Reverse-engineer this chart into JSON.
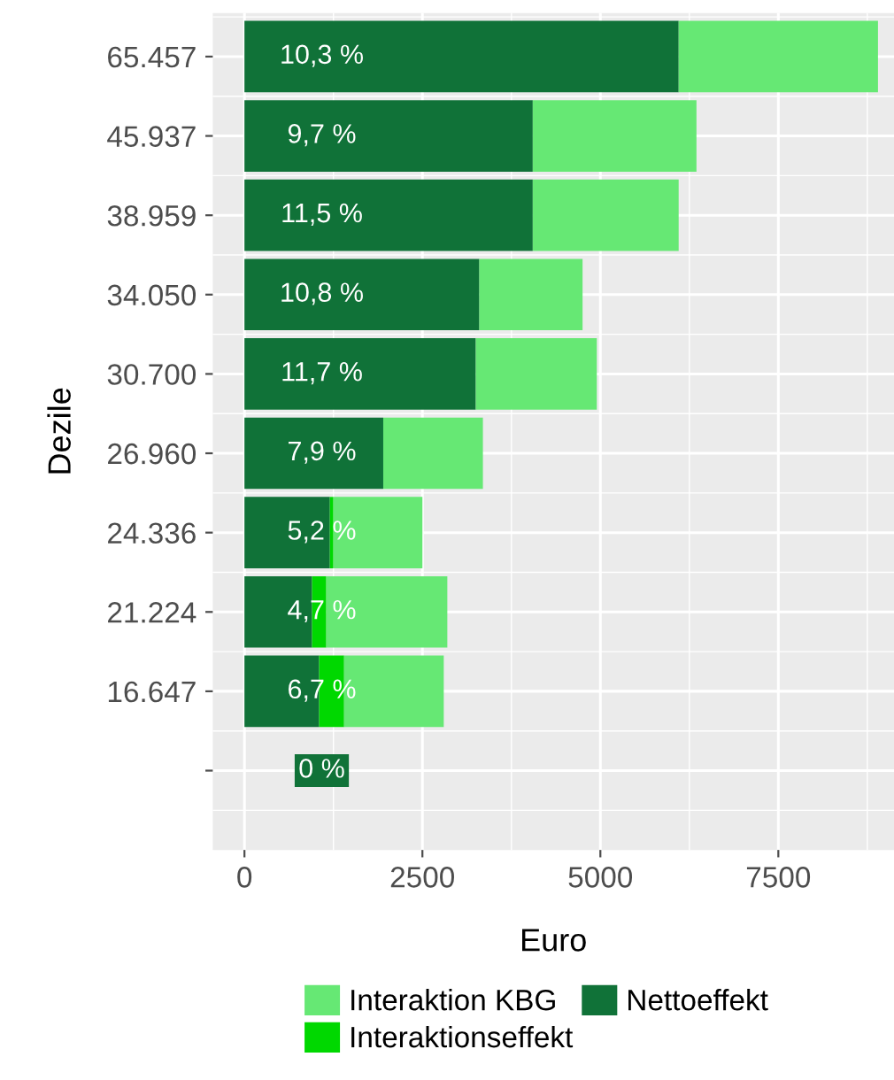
{
  "chart_data": {
    "type": "bar",
    "orientation": "horizontal",
    "stacked": true,
    "xlabel": "Euro",
    "ylabel": "Dezile",
    "categories": [
      "65.457",
      "45.937",
      "38.959",
      "34.050",
      "30.700",
      "26.960",
      "24.336",
      "21.224",
      "16.647",
      null
    ],
    "series": [
      {
        "name": "Nettoeffekt",
        "color": "#107238",
        "values": [
          6100,
          4050,
          4050,
          3300,
          3250,
          1950,
          1200,
          950,
          1050,
          0
        ]
      },
      {
        "name": "Interaktionseffekt",
        "color": "#00d800",
        "values": [
          0,
          0,
          0,
          0,
          0,
          0,
          50,
          200,
          350,
          0
        ]
      },
      {
        "name": "Interaktion KBG",
        "color": "#66e874",
        "values": [
          2800,
          2300,
          2050,
          1450,
          1700,
          1400,
          1250,
          1700,
          1400,
          0
        ]
      }
    ],
    "annotations": [
      "10,3 %",
      "9,7 %",
      "11,5 %",
      "10,8 %",
      "11,7 %",
      "7,9 %",
      "5,2 %",
      "4,7 %",
      "6,7 %",
      "0 %"
    ],
    "xlim": [
      -445,
      9125
    ],
    "xticks": [
      0,
      2500,
      5000,
      7500
    ],
    "grid": true,
    "legend": "bottom"
  }
}
